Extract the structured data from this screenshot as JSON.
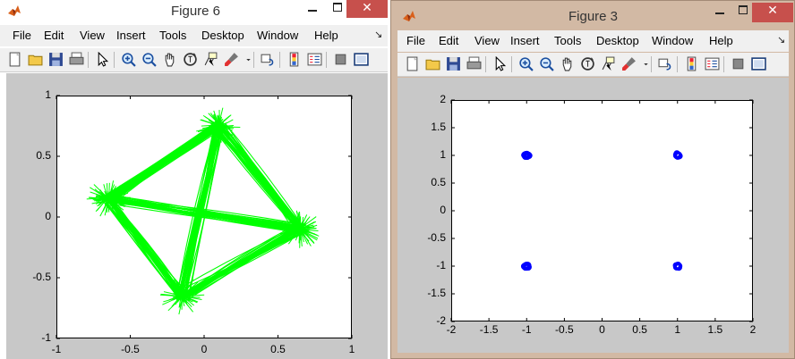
{
  "figure6": {
    "title": "Figure 6",
    "menu": [
      "File",
      "Edit",
      "View",
      "Insert",
      "Tools",
      "Desktop",
      "Window",
      "Help"
    ],
    "menu_arrow": "↘"
  },
  "figure3": {
    "title": "Figure 3",
    "menu": [
      "File",
      "Edit",
      "View",
      "Insert",
      "Tools",
      "Desktop",
      "Window",
      "Help"
    ],
    "menu_arrow": "↘"
  },
  "toolbar_icons": [
    "new-figure-icon",
    "open-file-icon",
    "save-icon",
    "print-icon",
    "edit-plot-arrow-icon",
    "zoom-in-icon",
    "zoom-out-icon",
    "pan-hand-icon",
    "rotate-3d-icon",
    "data-cursor-icon",
    "brush-icon",
    "brush-dropdown-icon",
    "link-plot-icon",
    "insert-colorbar-icon",
    "insert-legend-icon",
    "hide-plot-tools-icon",
    "show-plot-tools-icon"
  ],
  "window_controls": {
    "minimize": "—",
    "maximize": "□",
    "close": "✕"
  },
  "colors": {
    "green_trace": "#00ff00",
    "blue_points": "#0000ff",
    "canvas_gray": "#c8c8c8",
    "close_red": "#c7504c"
  },
  "chart_data": [
    {
      "type": "line",
      "title": "",
      "xlabel": "",
      "ylabel": "",
      "xlim": [
        -1,
        1
      ],
      "ylim": [
        -1,
        1
      ],
      "xticks": [
        "-1",
        "-0.5",
        "0",
        "0.5",
        "1"
      ],
      "yticks": [
        "1",
        "0.5",
        "0",
        "-0.5",
        "-1"
      ],
      "grid": false,
      "color": "#00ff00",
      "vertices": [
        {
          "x": 0.1,
          "y": 0.75
        },
        {
          "x": 0.65,
          "y": -0.1
        },
        {
          "x": -0.15,
          "y": -0.65
        },
        {
          "x": -0.65,
          "y": 0.15
        }
      ]
    },
    {
      "type": "scatter",
      "title": "",
      "xlabel": "",
      "ylabel": "",
      "xlim": [
        -2,
        2
      ],
      "ylim": [
        -2,
        2
      ],
      "xticks": [
        "-2",
        "-1.5",
        "-1",
        "-0.5",
        "0",
        "0.5",
        "1",
        "1.5",
        "2"
      ],
      "yticks": [
        "2",
        "1.5",
        "1",
        "0.5",
        "0",
        "-0.5",
        "-1",
        "-1.5",
        "-2"
      ],
      "grid": false,
      "color": "#0000ff",
      "points": [
        {
          "x": -1,
          "y": 1
        },
        {
          "x": 1,
          "y": 1
        },
        {
          "x": -1,
          "y": -1
        },
        {
          "x": 1,
          "y": -1
        }
      ]
    }
  ]
}
